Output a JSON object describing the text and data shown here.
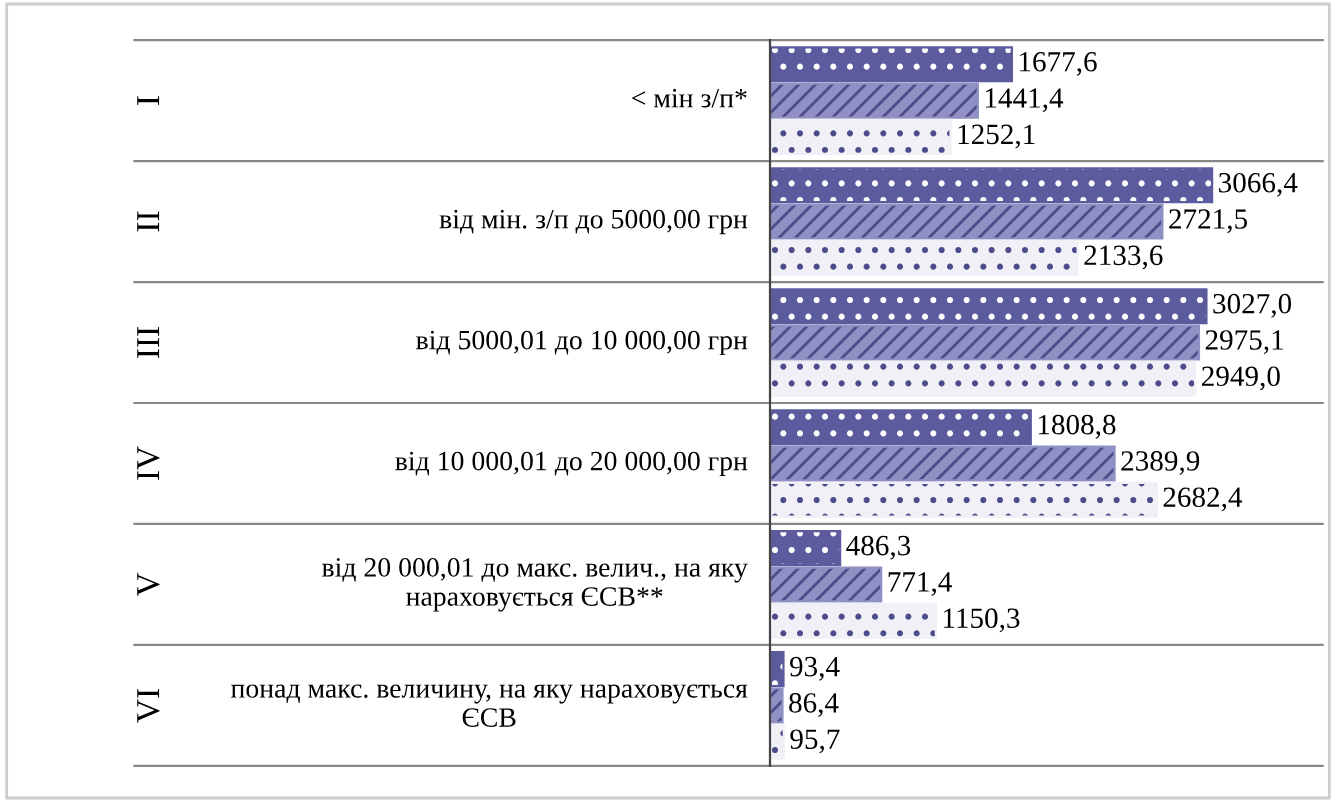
{
  "chart_data": {
    "type": "bar",
    "orientation": "horizontal",
    "data_labels": true,
    "categories": [
      "< мін з/п*",
      "від мін. з/п до 5000,00 грн",
      "від 5000,01 до 10 000,00 грн",
      "від 10 000,01 до 20 000,00 грн",
      "від 20 000,01 до макс. велич., на яку\nнараховується ЄСВ**",
      "понад макс. величину, на яку нараховується\nЄСВ"
    ],
    "annotations": [
      "I",
      "II",
      "III",
      "IV",
      "V",
      "VI"
    ],
    "series": [
      {
        "color": "#5b5b9e",
        "values": [
          1677.6,
          3066.4,
          3027.0,
          1808.8,
          486.3,
          93.4
        ],
        "value_labels": [
          "1677,6",
          "3066,4",
          "3027,0",
          "1808,8",
          "486,3",
          "93,4"
        ]
      },
      {
        "color": "#9090c4",
        "values": [
          1441.4,
          2721.5,
          2975.1,
          2389.9,
          771.4,
          86.4
        ],
        "value_labels": [
          "1441,4",
          "2721,5",
          "2975,1",
          "2389,9",
          "771,4",
          "86,4"
        ]
      },
      {
        "color": "#f0f0f6",
        "values": [
          1252.1,
          2133.6,
          2949.0,
          2682.4,
          1150.3,
          95.7
        ],
        "value_labels": [
          "1252,1",
          "2133,6",
          "2949,0",
          "2682,4",
          "1150,3",
          "95,7"
        ]
      }
    ]
  }
}
